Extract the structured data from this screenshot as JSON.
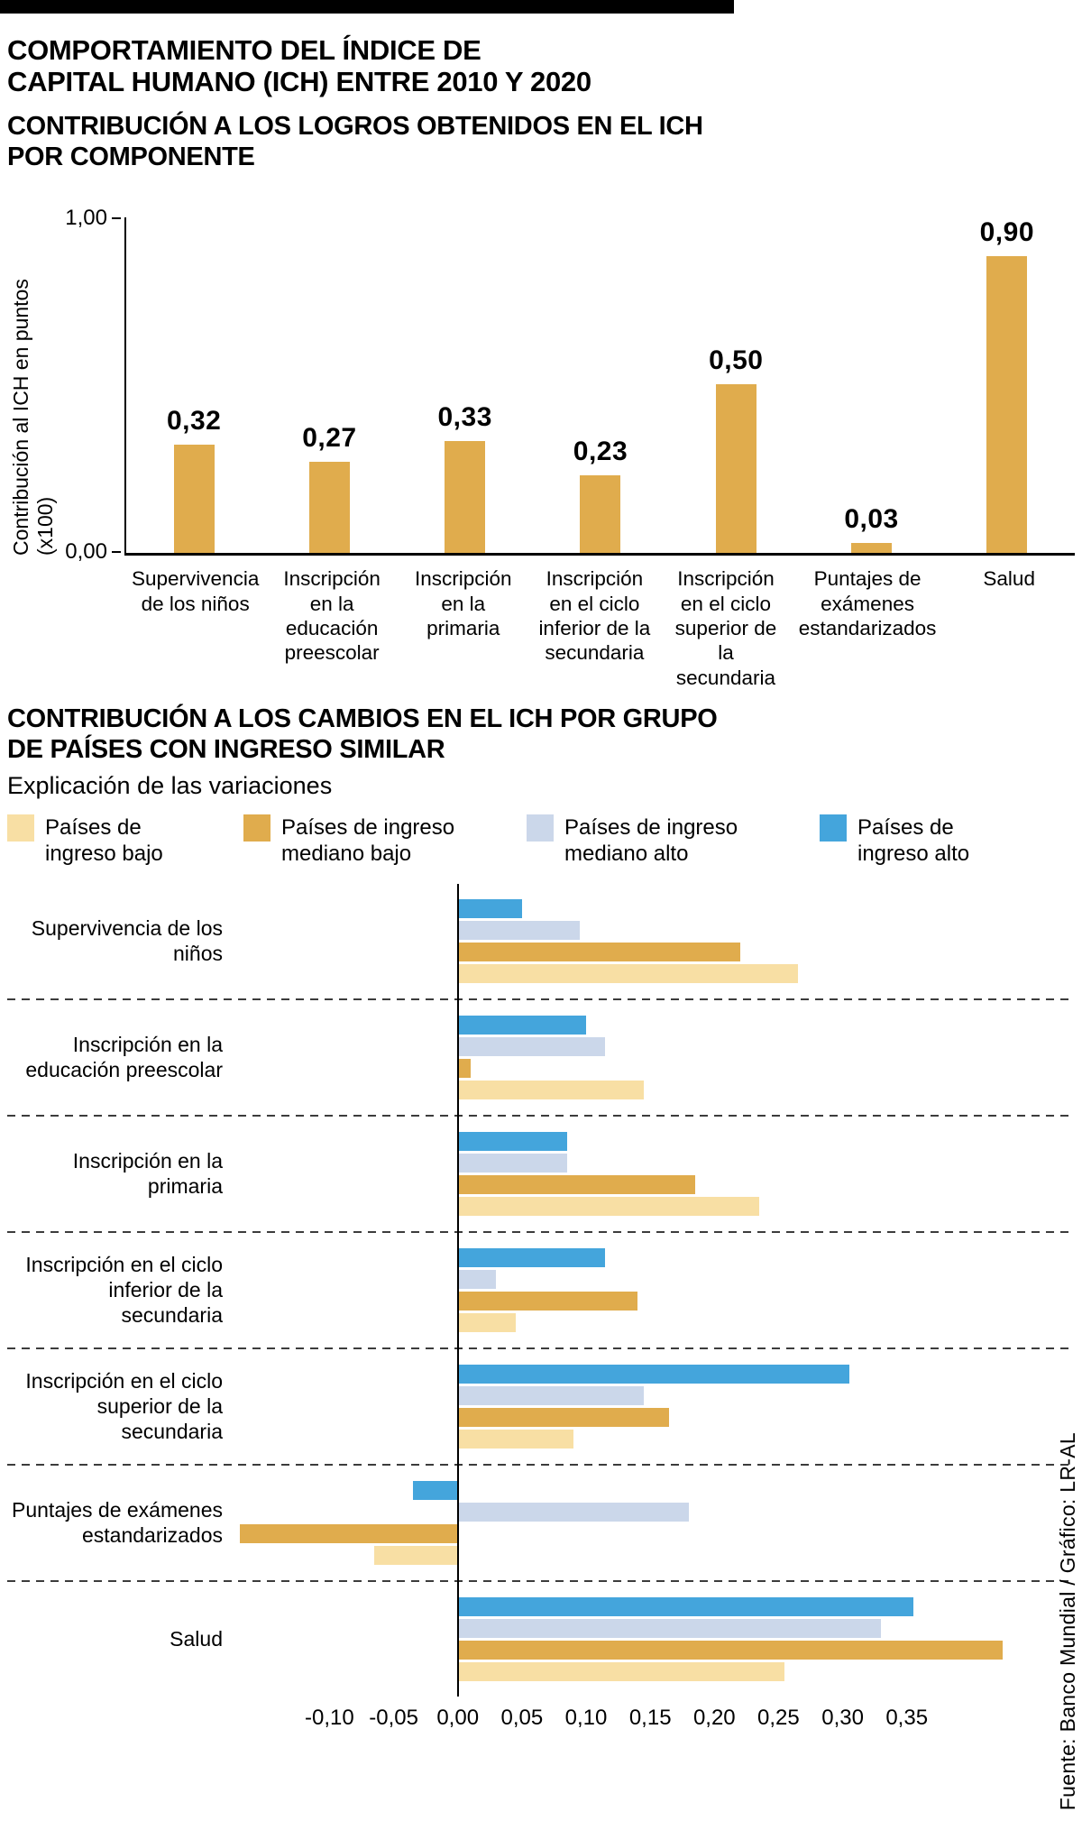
{
  "meta": {
    "title_line1": "COMPORTAMIENTO DEL ÍNDICE DE",
    "title_line2": "CAPITAL HUMANO (ICH) ENTRE 2010 Y 2020",
    "source": "Fuente: Banco Mundial / Gráfico: LR-AL"
  },
  "chart_data": [
    {
      "type": "bar",
      "title": "CONTRIBUCIÓN A LOS LOGROS OBTENIDOS EN EL ICH POR COMPONENTE",
      "title_lines": [
        "CONTRIBUCIÓN A LOS LOGROS OBTENIDOS EN EL ICH",
        "POR COMPONENTE"
      ],
      "ylabel": "Contribución al ICH en puntos (x100)",
      "ylim": [
        0,
        1.0
      ],
      "ytick_labels": [
        "1,00",
        "0,00"
      ],
      "grid": false,
      "bar_color": "#E0AC4D",
      "categories": [
        "Supervivencia de los niños",
        "Inscripción en la educación preescolar",
        "Inscripción en la primaria",
        "Inscripción en el ciclo inferior de la secundaria",
        "Inscripción en el ciclo superior de la secundaria",
        "Puntajes de exámenes estandarizados",
        "Salud"
      ],
      "values": [
        0.32,
        0.27,
        0.33,
        0.23,
        0.5,
        0.03,
        0.9
      ],
      "value_labels": [
        "0,32",
        "0,27",
        "0,33",
        "0,23",
        "0,50",
        "0,03",
        "0,90"
      ]
    },
    {
      "type": "bar-horizontal-grouped",
      "title": "CONTRIBUCIÓN A LOS CAMBIOS EN EL ICH POR GRUPO DE PAÍSES CON INGRESO SIMILAR",
      "title_lines": [
        "CONTRIBUCIÓN A LOS CAMBIOS EN EL ICH POR GRUPO",
        "DE PAÍSES CON INGRESO SIMILAR"
      ],
      "subtitle": "Explicación de las variaciones",
      "xlim": [
        -0.172,
        0.45
      ],
      "xticks": [
        -0.1,
        -0.05,
        0,
        0.05,
        0.1,
        0.15,
        0.2,
        0.25,
        0.3,
        0.35
      ],
      "xtick_labels": [
        "-0,10",
        "-0,05",
        "0,00",
        "0,05",
        "0,10",
        "0,15",
        "0,20",
        "0,25",
        "0,30",
        "0,35"
      ],
      "grid": false,
      "legend_position": "top",
      "categories": [
        "Supervivencia de los niños",
        "Inscripción en la educación preescolar",
        "Inscripción en la primaria",
        "Inscripción en el ciclo inferior de la secundaria",
        "Inscripción en el ciclo superior de la secundaria",
        "Puntajes de exámenes estandarizados",
        "Salud"
      ],
      "series": [
        {
          "name": "Países de ingreso alto",
          "color": "#44A5DC",
          "values": [
            0.05,
            0.1,
            0.085,
            0.115,
            0.305,
            -0.035,
            0.355
          ]
        },
        {
          "name": "Países de ingreso mediano alto",
          "color": "#CBD7EA",
          "values": [
            0.095,
            0.115,
            0.085,
            0.03,
            0.145,
            0.18,
            0.33
          ]
        },
        {
          "name": "Países de ingreso mediano bajo",
          "color": "#E0AC4D",
          "values": [
            0.22,
            0.01,
            0.185,
            0.14,
            0.165,
            -0.17,
            0.425
          ]
        },
        {
          "name": "Países de ingreso bajo",
          "color": "#F8DFA4",
          "values": [
            0.265,
            0.145,
            0.235,
            0.045,
            0.09,
            -0.065,
            0.255
          ]
        }
      ],
      "legend": [
        {
          "label": "Países de ingreso bajo",
          "color": "#F8DFA4"
        },
        {
          "label": "Países de ingreso mediano bajo",
          "color": "#E0AC4D"
        },
        {
          "label": "Países de ingreso mediano alto",
          "color": "#CBD7EA"
        },
        {
          "label": "Países de ingreso alto",
          "color": "#44A5DC"
        }
      ]
    }
  ]
}
